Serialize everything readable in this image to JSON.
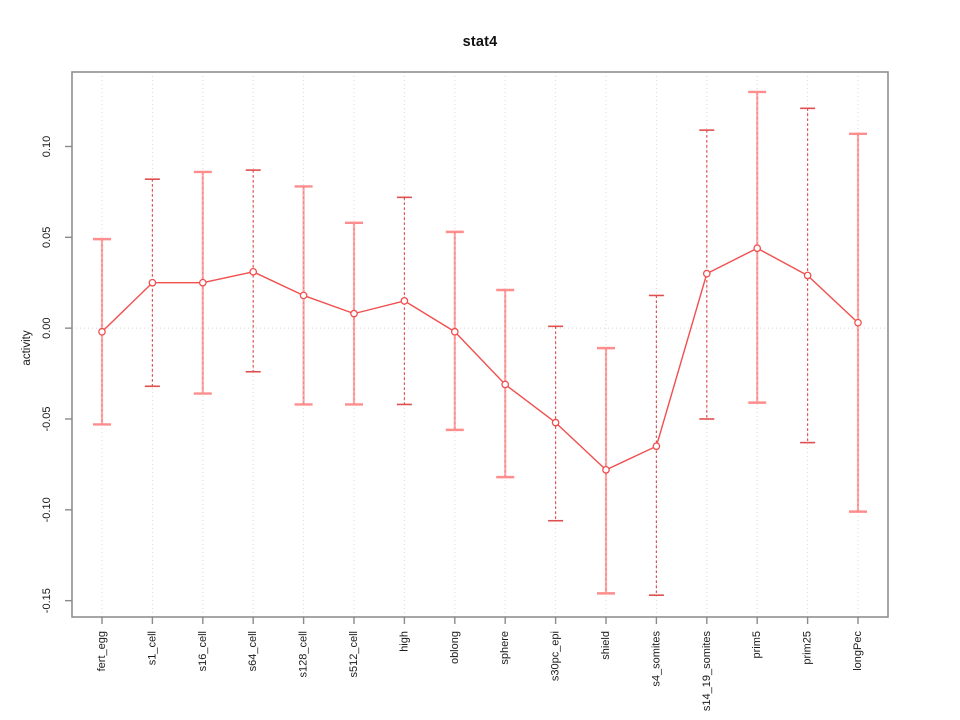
{
  "chart_data": {
    "type": "line",
    "title": "stat4",
    "ylabel": "activity",
    "xlabel": "",
    "categories": [
      "fert_egg",
      "s1_cell",
      "s16_cell",
      "s64_cell",
      "s128_cell",
      "s512_cell",
      "high",
      "oblong",
      "sphere",
      "s30pc_epi",
      "shield",
      "s4_somites",
      "s14_19_somites",
      "prim5",
      "prim25",
      "longPec"
    ],
    "series": [
      {
        "name": "activity",
        "values": [
          -0.002,
          0.025,
          0.025,
          0.031,
          0.018,
          0.008,
          0.015,
          -0.002,
          -0.031,
          -0.052,
          -0.078,
          -0.065,
          0.03,
          0.044,
          0.029,
          0.003
        ],
        "error_low": [
          -0.053,
          -0.032,
          -0.036,
          -0.024,
          -0.042,
          -0.042,
          -0.042,
          -0.056,
          -0.082,
          -0.106,
          -0.146,
          -0.147,
          -0.05,
          -0.041,
          -0.063,
          -0.101
        ],
        "error_high": [
          0.049,
          0.082,
          0.086,
          0.087,
          0.078,
          0.058,
          0.072,
          0.053,
          0.021,
          0.001,
          -0.011,
          0.018,
          0.109,
          0.13,
          0.121,
          0.107
        ]
      }
    ],
    "bar_styles": [
      "solid",
      "dashed",
      "solid",
      "dashed",
      "solid",
      "solid",
      "dashed",
      "solid",
      "solid",
      "dashed",
      "solid",
      "dashed",
      "dashed",
      "solid",
      "dashed",
      "solid"
    ],
    "yticks": {
      "values": [
        -0.15,
        -0.1,
        -0.05,
        0.0,
        0.05,
        0.1
      ],
      "labels": [
        "-0.15",
        "-0.10",
        "-0.05",
        "0.00",
        "0.05",
        "0.10"
      ]
    },
    "ylim": [
      -0.159,
      0.141
    ],
    "grid": {
      "vertical_per_category": true,
      "horizontal_at_zero": true
    },
    "legend": null,
    "colors": {
      "line": "#f14e4e",
      "point_fill": "#ffffff",
      "bar_solid": "#ffa8a8",
      "bar_solid_cap": "#ff8d8d",
      "bar_dash_overlay": "#e05555",
      "bar_dashed": "#e04f4f",
      "grid": "#d9d9d9",
      "frame": "#8f8f8f",
      "tick": "#8a8a8a",
      "text": "#1a1a1a",
      "title_text": "#111111"
    }
  }
}
